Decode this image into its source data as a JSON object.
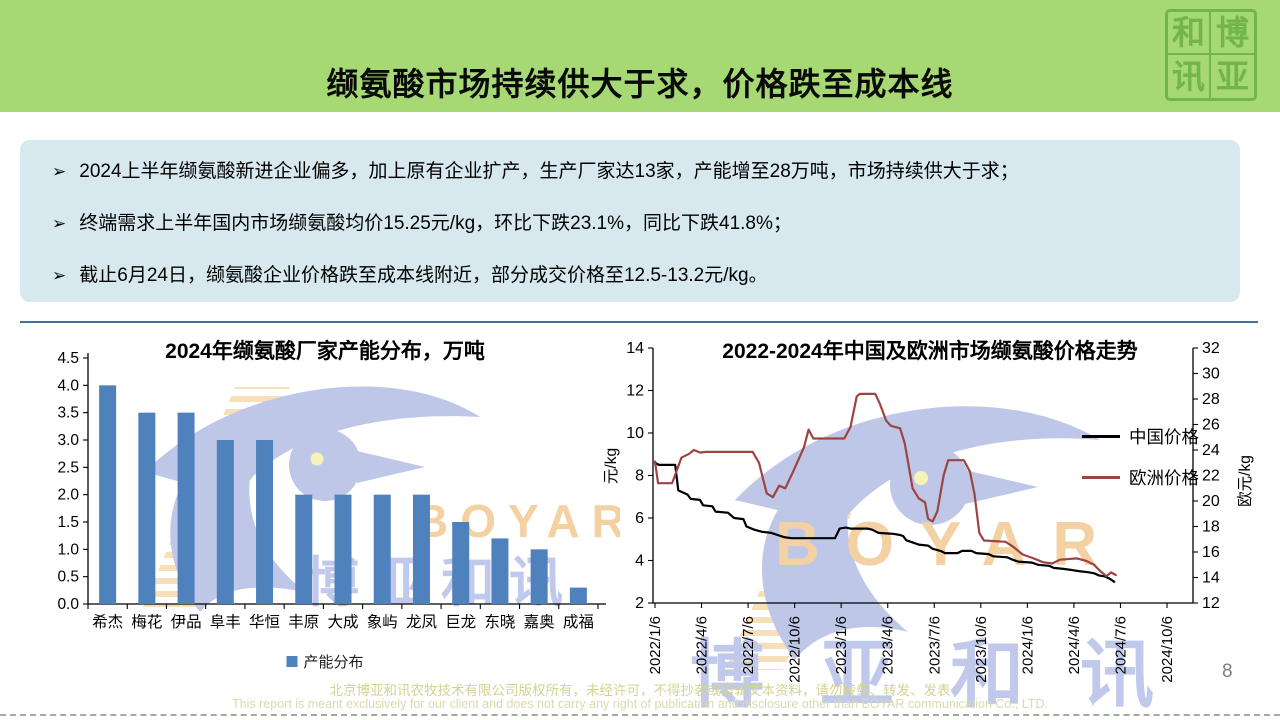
{
  "header": {
    "title": "缬氨酸市场持续供大于求，价格跌至成本线",
    "logo": {
      "chars": [
        "和",
        "博",
        "讯",
        "亚"
      ]
    }
  },
  "summary": {
    "marker": "➢",
    "bullets": [
      "2024上半年缬氨酸新进企业偏多，加上原有企业扩产，生产厂家达13家，产能增至28万吨，市场持续供大于求；",
      "终端需求上半年国内市场缬氨酸均价15.25元/kg，环比下跌23.1%，同比下跌41.8%；",
      "截止6月24日，缬氨酸企业价格跌至成本线附近，部分成交价格至12.5-13.2元/kg。"
    ]
  },
  "watermark": {
    "en": "BOYAR",
    "cn": "博亚和讯"
  },
  "chart_data": [
    {
      "id": "capacity-2024",
      "type": "bar",
      "title": "2024年缬氨酸厂家产能分布，万吨",
      "categories": [
        "希杰",
        "梅花",
        "伊品",
        "阜丰",
        "华恒",
        "丰原",
        "大成",
        "象屿",
        "龙凤",
        "巨龙",
        "东晓",
        "嘉奥",
        "成福"
      ],
      "values": [
        4.0,
        3.5,
        3.5,
        3.0,
        3.0,
        2.0,
        2.0,
        2.0,
        2.0,
        1.5,
        1.2,
        1.0,
        0.3
      ],
      "ylim": [
        0,
        4.5
      ],
      "ytick_step": 0.5,
      "bar_color": "#4f81bd",
      "legend": [
        "产能分布"
      ],
      "legend_position": "bottom",
      "grid": false
    },
    {
      "id": "price-trend",
      "type": "line",
      "title": "2022-2024年中国及欧洲市场缬氨酸价格走势",
      "ylabel_left": "元/kg",
      "ylabel_right": "欧元/kg",
      "ylim_left": [
        2,
        14
      ],
      "ylim_right": [
        12,
        32
      ],
      "ytick_step": 2,
      "x_tick_labels": [
        "2022/1/6",
        "2022/4/6",
        "2022/7/6",
        "2022/10/6",
        "2023/1/6",
        "2023/4/6",
        "2023/7/6",
        "2023/10/6",
        "2024/1/6",
        "2024/4/6",
        "2024/7/6",
        "2024/10/6"
      ],
      "x_months_per_tick": 3,
      "x_month_max": 33,
      "x_unit": "months since 2022/1/6",
      "grid": false,
      "legend_position": "inside right",
      "series": [
        {
          "name": "中国价格",
          "axis": "left",
          "color": "#000000",
          "points": [
            [
              0,
              8.6
            ],
            [
              0.25,
              8.5
            ],
            [
              1.3,
              8.5
            ],
            [
              1.5,
              7.3
            ],
            [
              2.1,
              7.1
            ],
            [
              2.3,
              6.9
            ],
            [
              2.9,
              6.85
            ],
            [
              3.1,
              6.6
            ],
            [
              3.7,
              6.55
            ],
            [
              3.9,
              6.3
            ],
            [
              4.7,
              6.25
            ],
            [
              5.1,
              6.0
            ],
            [
              5.7,
              5.95
            ],
            [
              5.9,
              5.6
            ],
            [
              6.4,
              5.45
            ],
            [
              6.9,
              5.35
            ],
            [
              7.5,
              5.3
            ],
            [
              7.9,
              5.2
            ],
            [
              8.3,
              5.1
            ],
            [
              8.8,
              5.05
            ],
            [
              11.6,
              5.05
            ],
            [
              11.9,
              5.5
            ],
            [
              12.3,
              5.55
            ],
            [
              12.6,
              5.5
            ],
            [
              13.7,
              5.5
            ],
            [
              14.0,
              5.45
            ],
            [
              14.4,
              5.3
            ],
            [
              15.4,
              5.25
            ],
            [
              15.8,
              5.2
            ],
            [
              16.0,
              5.15
            ],
            [
              16.2,
              4.95
            ],
            [
              16.6,
              4.85
            ],
            [
              17.0,
              4.75
            ],
            [
              17.6,
              4.7
            ],
            [
              17.9,
              4.55
            ],
            [
              18.4,
              4.45
            ],
            [
              18.7,
              4.35
            ],
            [
              19.5,
              4.35
            ],
            [
              19.8,
              4.45
            ],
            [
              20.4,
              4.45
            ],
            [
              20.7,
              4.35
            ],
            [
              21.5,
              4.3
            ],
            [
              21.8,
              4.2
            ],
            [
              22.7,
              4.15
            ],
            [
              23.0,
              4.05
            ],
            [
              23.4,
              3.95
            ],
            [
              24.3,
              3.9
            ],
            [
              24.7,
              3.8
            ],
            [
              25.4,
              3.75
            ],
            [
              25.7,
              3.65
            ],
            [
              26.4,
              3.6
            ],
            [
              26.9,
              3.55
            ],
            [
              27.3,
              3.5
            ],
            [
              27.9,
              3.45
            ],
            [
              28.3,
              3.4
            ],
            [
              28.6,
              3.3
            ],
            [
              29.0,
              3.25
            ],
            [
              29.3,
              3.15
            ],
            [
              29.6,
              3.0
            ]
          ]
        },
        {
          "name": "欧洲价格",
          "axis": "right",
          "color": "#9c4540",
          "points": [
            [
              0,
              23.1
            ],
            [
              0.2,
              21.4
            ],
            [
              1.1,
              21.4
            ],
            [
              1.7,
              23.4
            ],
            [
              2.2,
              23.7
            ],
            [
              2.5,
              24.0
            ],
            [
              2.9,
              23.8
            ],
            [
              3.3,
              23.85
            ],
            [
              6.3,
              23.85
            ],
            [
              6.7,
              23.0
            ],
            [
              7.2,
              20.6
            ],
            [
              7.6,
              20.3
            ],
            [
              8.0,
              21.2
            ],
            [
              8.4,
              21.0
            ],
            [
              8.9,
              22.3
            ],
            [
              9.6,
              24.2
            ],
            [
              9.9,
              25.6
            ],
            [
              10.2,
              24.9
            ],
            [
              12.2,
              24.9
            ],
            [
              12.6,
              25.8
            ],
            [
              13.0,
              28.2
            ],
            [
              13.2,
              28.4
            ],
            [
              14.2,
              28.4
            ],
            [
              14.5,
              27.6
            ],
            [
              14.9,
              26.3
            ],
            [
              15.2,
              25.9
            ],
            [
              15.8,
              25.7
            ],
            [
              16.1,
              24.5
            ],
            [
              16.6,
              21.0
            ],
            [
              17.0,
              20.2
            ],
            [
              17.4,
              19.9
            ],
            [
              17.6,
              18.6
            ],
            [
              17.9,
              18.4
            ],
            [
              18.2,
              19.2
            ],
            [
              18.6,
              22.0
            ],
            [
              18.9,
              23.2
            ],
            [
              19.9,
              23.2
            ],
            [
              20.3,
              22.3
            ],
            [
              20.6,
              20.5
            ],
            [
              20.9,
              17.5
            ],
            [
              21.2,
              16.9
            ],
            [
              22.6,
              16.8
            ],
            [
              23.1,
              16.4
            ],
            [
              23.7,
              15.8
            ],
            [
              24.4,
              15.5
            ],
            [
              25.0,
              15.2
            ],
            [
              25.6,
              15.1
            ],
            [
              26.1,
              15.4
            ],
            [
              27.2,
              15.5
            ],
            [
              27.8,
              15.3
            ],
            [
              28.3,
              15.0
            ],
            [
              28.7,
              14.5
            ],
            [
              29.1,
              14.1
            ],
            [
              29.4,
              14.4
            ],
            [
              29.7,
              14.2
            ]
          ]
        }
      ]
    }
  ],
  "footer": {
    "line1": "北京博亚和讯农牧技术有限公司版权所有，未经许可，不得抄袭或剪辑文本资料，请勿转载、转发、发表",
    "line2": "This report is meant exclusively for our client and does not carry any right of publication and disclosure other than BOYAR communication Co., LTD.",
    "page_number": "8"
  },
  "colors": {
    "header_green": "#a6d973",
    "seal_green": "#72b54a",
    "summary_bg": "#d7e9ef",
    "divider_blue": "#41719c",
    "bar_blue": "#4f81bd",
    "china_line": "#000000",
    "europe_line": "#9c4540",
    "watermark_blue": "#b7c1e6",
    "watermark_orange": "#f2cd99",
    "footer_text": "#d3d392",
    "page_number_gray": "#7f7f7f"
  }
}
